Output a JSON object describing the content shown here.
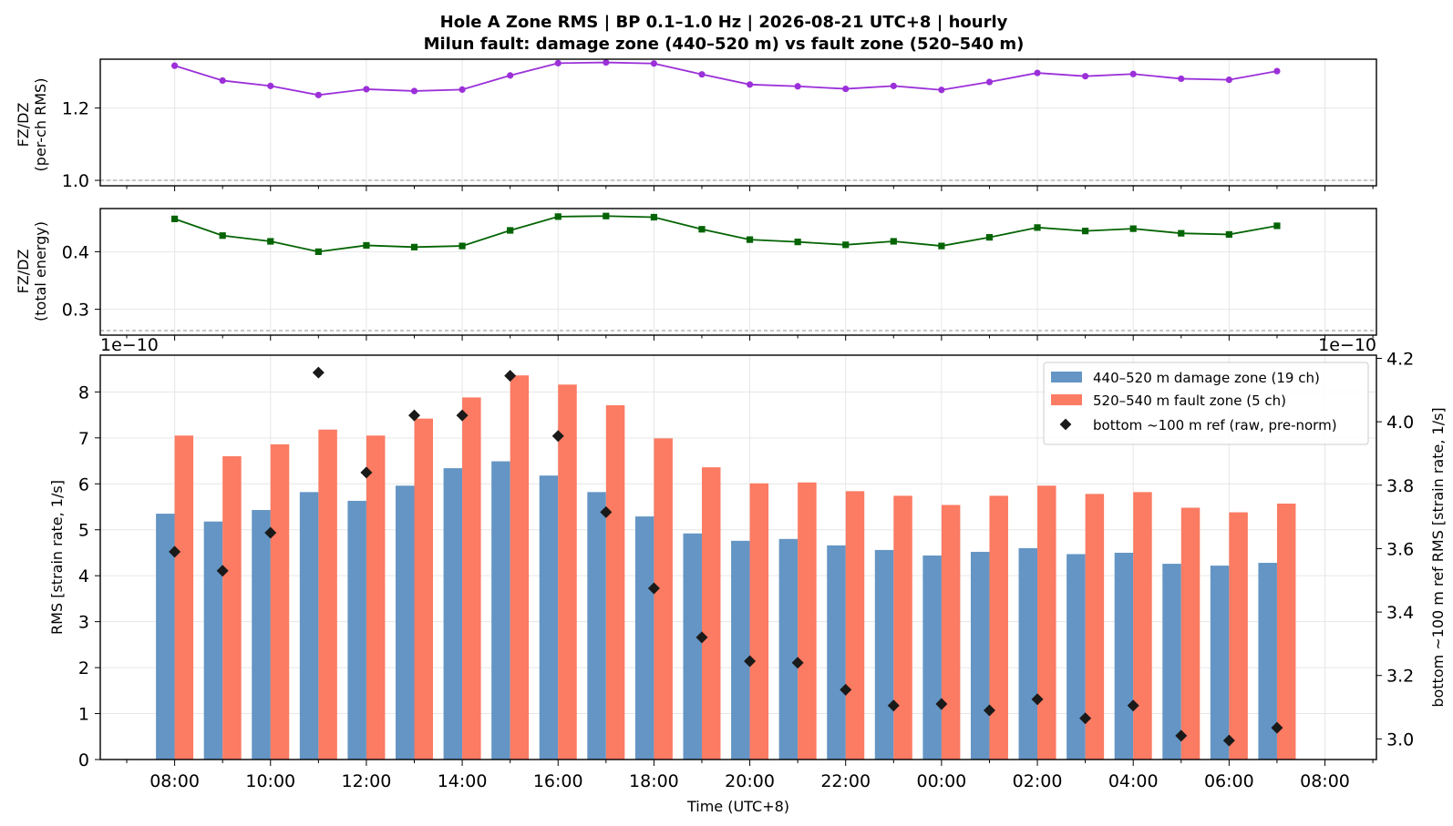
{
  "title_line1": "Hole A Zone RMS  |  BP 0.1–1.0 Hz  |  2026-08-21 UTC+8  |  hourly",
  "title_line2": "Milun fault: damage zone (440–520 m) vs fault zone (520–540 m)",
  "colors": {
    "damage_zone": "#6495c4",
    "fault_zone": "#fb7b63",
    "bottom_ref": "#1a1a1a",
    "ratio_rms": "#9b30d9",
    "ratio_energy": "#046404"
  },
  "chart_data": [
    {
      "type": "line",
      "ylabel_line1": "FZ/DZ",
      "ylabel_line2": "(per-ch RMS)",
      "ylim": [
        0.985,
        1.335
      ],
      "yticks": [
        1.0,
        1.2
      ],
      "ytick_labels": [
        "1.0",
        "1.2"
      ],
      "reference_line": 1.0,
      "grid": true,
      "series": [
        {
          "values": [
            1.317,
            1.276,
            1.261,
            1.236,
            1.252,
            1.247,
            1.251,
            1.29,
            1.324,
            1.326,
            1.323,
            1.293,
            1.265,
            1.26,
            1.253,
            1.261,
            1.25,
            1.272,
            1.297,
            1.288,
            1.294,
            1.281,
            1.278,
            1.302
          ]
        }
      ]
    },
    {
      "type": "line",
      "ylabel_line1": "FZ/DZ",
      "ylabel_line2": "(total energy)",
      "ylim": [
        0.255,
        0.475
      ],
      "yticks": [
        0.3,
        0.4
      ],
      "ytick_labels": [
        "0.3",
        "0.4"
      ],
      "reference_line": 0.263,
      "grid": true,
      "series": [
        {
          "values": [
            0.457,
            0.428,
            0.418,
            0.4,
            0.411,
            0.408,
            0.41,
            0.437,
            0.461,
            0.462,
            0.46,
            0.439,
            0.421,
            0.417,
            0.412,
            0.418,
            0.41,
            0.425,
            0.442,
            0.436,
            0.44,
            0.432,
            0.43,
            0.445
          ]
        }
      ]
    },
    {
      "type": "bar",
      "xlabel": "Time (UTC+8)",
      "ylabel": "RMS  [strain rate, 1/s]",
      "y2label": "bottom ~100 m ref RMS  [strain rate, 1/s]",
      "offset_left": "1e−10",
      "offset_right": "1e−10",
      "ylim": [
        0,
        8.8
      ],
      "y2lim": [
        2.935,
        4.21
      ],
      "yticks": [
        "0",
        "1",
        "2",
        "3",
        "4",
        "5",
        "6",
        "7",
        "8"
      ],
      "y2ticks": [
        "3.0",
        "3.2",
        "3.4",
        "3.6",
        "3.8",
        "4.0",
        "4.2"
      ],
      "x_tick_labels": [
        "08:00",
        "10:00",
        "12:00",
        "14:00",
        "16:00",
        "18:00",
        "20:00",
        "22:00",
        "00:00",
        "02:00",
        "04:00",
        "06:00",
        "08:00"
      ],
      "legend_position": "top-right",
      "grid": true,
      "series": [
        {
          "name": "440–520 m  damage zone (19 ch)",
          "axis": "left",
          "values": [
            5.35,
            5.18,
            5.43,
            5.82,
            5.63,
            5.96,
            6.34,
            6.49,
            6.18,
            5.82,
            5.29,
            4.92,
            4.76,
            4.8,
            4.66,
            4.56,
            4.44,
            4.52,
            4.6,
            4.47,
            4.5,
            4.26,
            4.22,
            4.28
          ]
        },
        {
          "name": "520–540 m  fault zone (5 ch)",
          "axis": "left",
          "values": [
            7.05,
            6.6,
            6.86,
            7.18,
            7.05,
            7.42,
            7.88,
            8.36,
            8.16,
            7.71,
            6.99,
            6.36,
            6.01,
            6.03,
            5.84,
            5.74,
            5.54,
            5.74,
            5.96,
            5.78,
            5.82,
            5.48,
            5.38,
            5.57
          ]
        },
        {
          "name": "bottom ~100 m ref (raw, pre-norm)",
          "axis": "right",
          "values": [
            3.59,
            3.53,
            3.65,
            4.155,
            3.84,
            4.02,
            4.02,
            4.145,
            3.955,
            3.715,
            3.475,
            3.32,
            3.245,
            3.24,
            3.155,
            3.105,
            3.11,
            3.09,
            3.125,
            3.065,
            3.105,
            3.01,
            2.995,
            3.035
          ]
        }
      ]
    }
  ]
}
